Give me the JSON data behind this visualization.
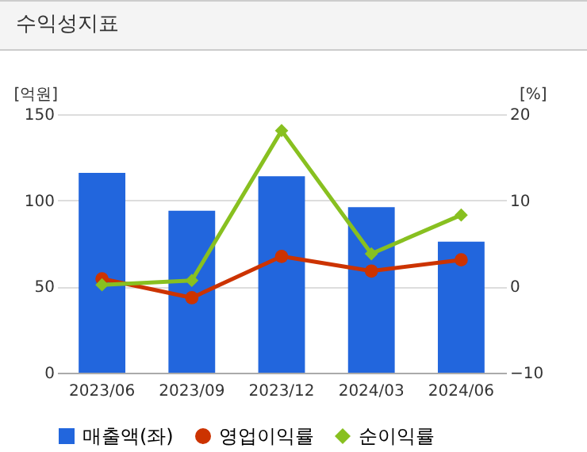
{
  "chart_data": {
    "type": "bar",
    "title": "수익성지표",
    "ylabel": "[억원]",
    "y2label": "[%]",
    "categories": [
      "2023/06",
      "2023/09",
      "2023/12",
      "2024/03",
      "2024/06"
    ],
    "series": [
      {
        "name": "매출액(좌)",
        "color": "#2266dd",
        "values": [
          116,
          94,
          114,
          96,
          76
        ]
      },
      {
        "name": "영업이익률",
        "type": "line",
        "axis": "y2",
        "marker": "circle",
        "color": "#cc3300",
        "values": [
          0.9,
          -1.3,
          3.5,
          1.8,
          3.1
        ]
      },
      {
        "name": "순이익률",
        "type": "line",
        "axis": "y2",
        "marker": "diamond",
        "color": "#88c020",
        "values": [
          0.2,
          0.7,
          18.1,
          3.8,
          8.3
        ]
      }
    ],
    "ylim": [
      0,
      150
    ],
    "yticks": [
      0,
      50,
      100,
      150
    ],
    "y2lim": [
      -10,
      20
    ],
    "y2ticks": [
      -10,
      0,
      10,
      20
    ],
    "grid": "y",
    "legend": "bottom"
  }
}
